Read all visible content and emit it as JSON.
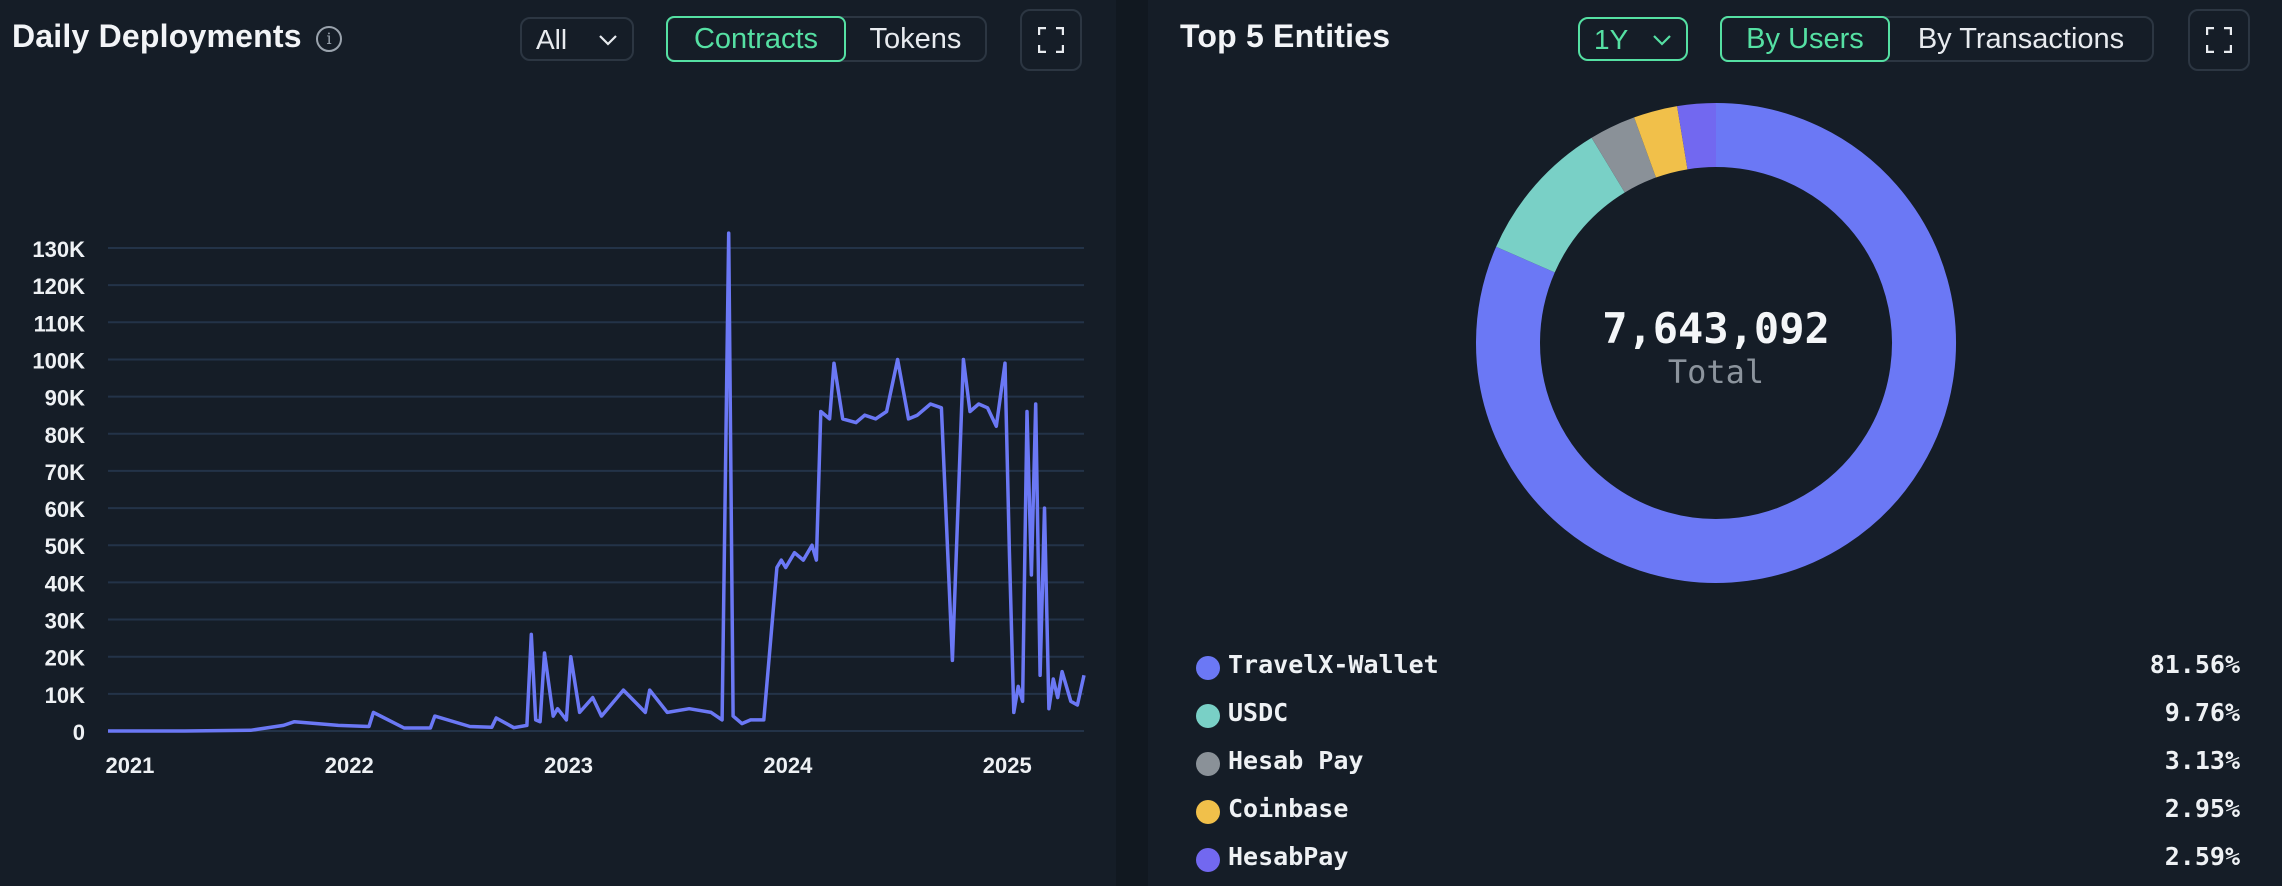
{
  "left_panel": {
    "title": "Daily Deployments",
    "info_icon": "i",
    "range_select": "All",
    "toggle": {
      "options": [
        "Contracts",
        "Tokens"
      ],
      "active": "Contracts"
    },
    "fullscreen_icon": "expand-icon"
  },
  "right_panel": {
    "title": "Top 5 Entities",
    "range_select": "1Y",
    "toggle": {
      "options": [
        "By Users",
        "By Transactions"
      ],
      "active": "By Users"
    },
    "fullscreen_icon": "expand-icon",
    "total_value": "7,643,092",
    "total_label": "Total"
  },
  "colors": {
    "accent": "#55e0a3",
    "line": "#6b78f5",
    "travelx": "#6b78f5",
    "usdc": "#79d0c6",
    "hesab_pay": "#8a9198",
    "coinbase": "#f1c04a",
    "hesabpay": "#7268f0"
  },
  "chart_data": [
    {
      "type": "line",
      "title": "Daily Deployments",
      "xlabel": "",
      "ylabel": "",
      "x_tick_labels": [
        "2021",
        "2022",
        "2023",
        "2024",
        "2025"
      ],
      "y_tick_labels": [
        "0",
        "10K",
        "20K",
        "30K",
        "40K",
        "50K",
        "60K",
        "70K",
        "80K",
        "90K",
        "100K",
        "110K",
        "120K",
        "130K"
      ],
      "ylim": [
        0,
        130000
      ],
      "xlim": [
        2020.95,
        2025.4
      ],
      "grid": true,
      "series": [
        {
          "name": "Contracts",
          "x": [
            2020.95,
            2021.3,
            2021.6,
            2021.75,
            2021.8,
            2022.0,
            2022.14,
            2022.16,
            2022.3,
            2022.42,
            2022.44,
            2022.6,
            2022.7,
            2022.72,
            2022.8,
            2022.86,
            2022.88,
            2022.9,
            2022.92,
            2022.94,
            2022.98,
            2023.0,
            2023.04,
            2023.06,
            2023.1,
            2023.16,
            2023.2,
            2023.3,
            2023.4,
            2023.42,
            2023.5,
            2023.6,
            2023.7,
            2023.75,
            2023.78,
            2023.8,
            2023.84,
            2023.88,
            2023.94,
            2024.0,
            2024.02,
            2024.04,
            2024.08,
            2024.12,
            2024.16,
            2024.18,
            2024.2,
            2024.24,
            2024.26,
            2024.3,
            2024.36,
            2024.4,
            2024.45,
            2024.5,
            2024.55,
            2024.6,
            2024.64,
            2024.7,
            2024.75,
            2024.8,
            2024.85,
            2024.88,
            2024.92,
            2024.96,
            2025.0,
            2025.04,
            2025.06,
            2025.08,
            2025.1,
            2025.12,
            2025.14,
            2025.16,
            2025.18,
            2025.2,
            2025.22,
            2025.24,
            2025.26,
            2025.28,
            2025.3,
            2025.34,
            2025.37,
            2025.4
          ],
          "y": [
            0,
            0,
            200,
            1500,
            2500,
            1500,
            1200,
            5000,
            800,
            800,
            4000,
            1200,
            1000,
            3500,
            900,
            1500,
            26000,
            3000,
            2500,
            21000,
            4000,
            6000,
            3000,
            20000,
            5000,
            9000,
            4000,
            11000,
            5000,
            11000,
            5000,
            6000,
            5000,
            3000,
            134000,
            4000,
            2000,
            3000,
            3000,
            44000,
            46000,
            44000,
            48000,
            46000,
            50000,
            46000,
            86000,
            84000,
            99000,
            84000,
            83000,
            85000,
            84000,
            86000,
            100000,
            84000,
            85000,
            88000,
            87000,
            19000,
            100000,
            86000,
            88000,
            87000,
            82000,
            99000,
            48000,
            5000,
            12000,
            8000,
            86000,
            42000,
            88000,
            15000,
            60000,
            6000,
            14000,
            9000,
            16000,
            8000,
            7000,
            15000
          ]
        }
      ]
    },
    {
      "type": "pie",
      "title": "Top 5 Entities",
      "total": 7643092,
      "categories": [
        "TravelX-Wallet",
        "USDC",
        "Hesab Pay",
        "Coinbase",
        "HesabPay"
      ],
      "values": [
        81.56,
        9.76,
        3.13,
        2.95,
        2.59
      ],
      "value_labels": [
        "81.56%",
        "9.76%",
        "3.13%",
        "2.95%",
        "2.59%"
      ],
      "legend_position": "bottom"
    }
  ]
}
